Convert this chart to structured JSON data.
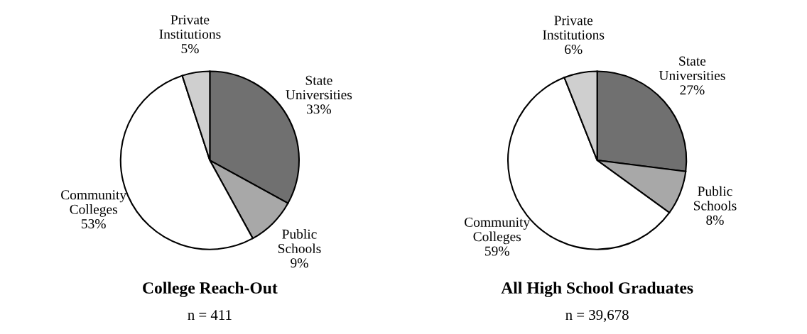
{
  "chart_data": [
    {
      "type": "pie",
      "title": "College Reach-Out",
      "subtitle": "n = 411",
      "categories": [
        "State Universities",
        "Public Schools",
        "Community Colleges",
        "Private Institutions"
      ],
      "values": [
        33,
        9,
        53,
        5
      ],
      "value_labels": [
        "33%",
        "9%",
        "53%",
        "5%"
      ],
      "colors": [
        "#707070",
        "#a8a8a8",
        "#ffffff",
        "#cfcfcf"
      ]
    },
    {
      "type": "pie",
      "title": "All High School Graduates",
      "subtitle": "n = 39,678",
      "categories": [
        "State Universities",
        "Public Schools",
        "Community Colleges",
        "Private Institutions"
      ],
      "values": [
        27,
        8,
        59,
        6
      ],
      "value_labels": [
        "27%",
        "8%",
        "59%",
        "6%"
      ],
      "colors": [
        "#707070",
        "#a8a8a8",
        "#ffffff",
        "#cfcfcf"
      ]
    }
  ]
}
